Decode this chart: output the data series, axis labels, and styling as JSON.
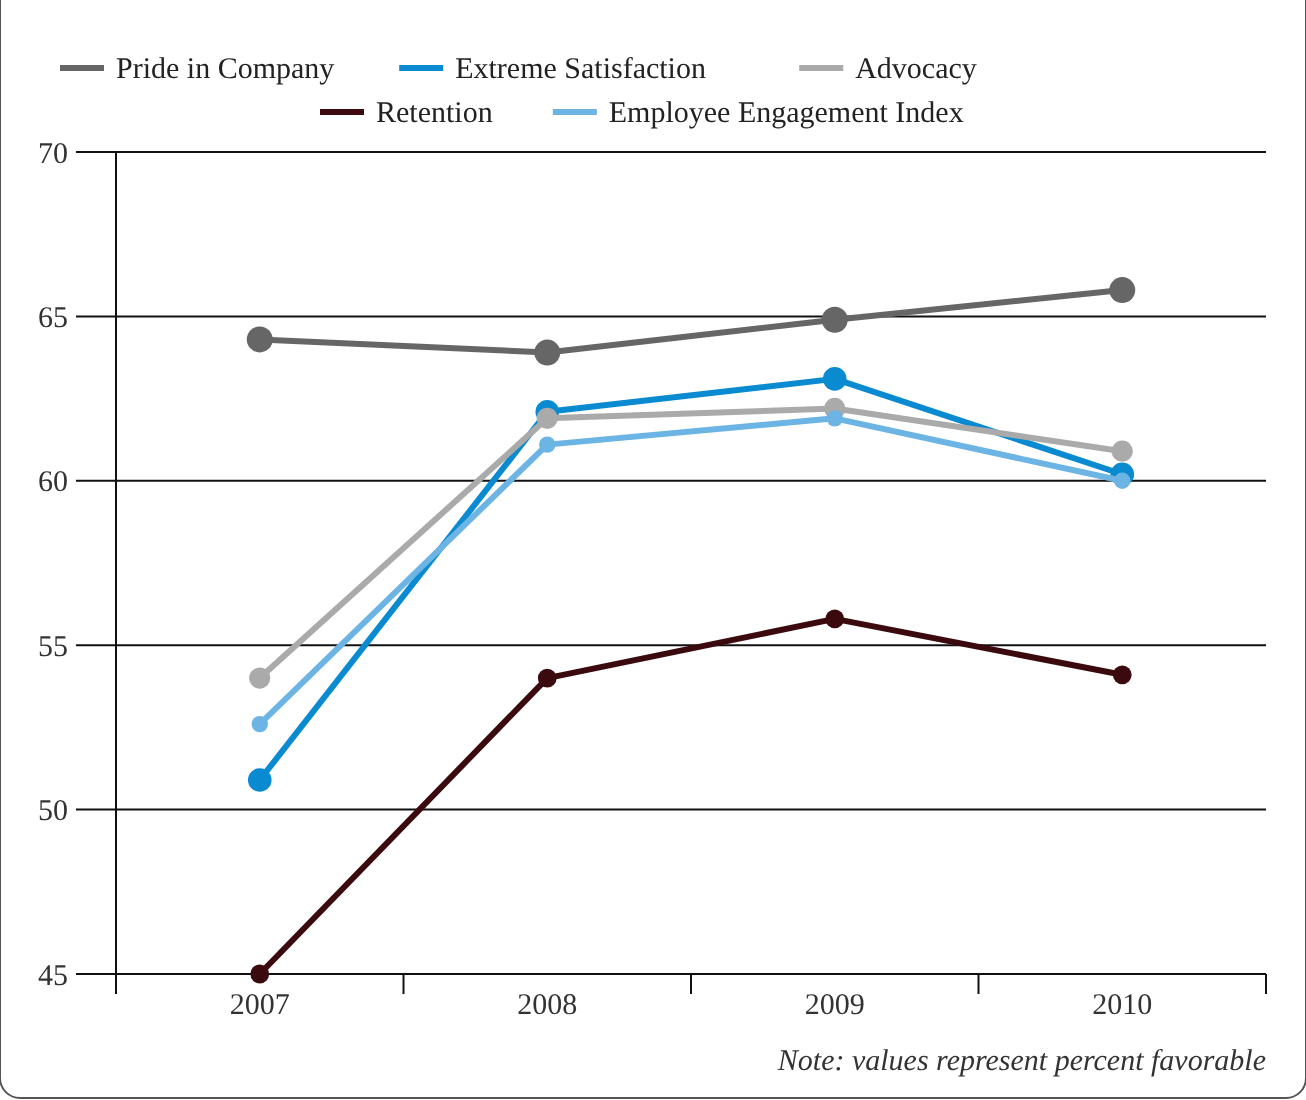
{
  "chart_data": {
    "type": "line",
    "categories": [
      "2007",
      "2008",
      "2009",
      "2010"
    ],
    "series": [
      {
        "name": "Pride in Company",
        "color": "#666666",
        "values": [
          64.3,
          63.9,
          64.9,
          65.8
        ]
      },
      {
        "name": "Extreme Satisfaction",
        "color": "#0a8ad0",
        "values": [
          50.9,
          62.1,
          63.1,
          60.2
        ]
      },
      {
        "name": "Advocacy",
        "color": "#aaaaaa",
        "values": [
          54.0,
          61.9,
          62.2,
          60.9
        ]
      },
      {
        "name": "Retention",
        "color": "#3b0a0f",
        "values": [
          45.0,
          54.0,
          55.8,
          54.1
        ]
      },
      {
        "name": "Employee Engagement Index",
        "color": "#6cb4e4",
        "values": [
          52.6,
          61.1,
          61.9,
          60.0
        ]
      }
    ],
    "ylim": [
      45,
      70
    ],
    "yticks": [
      45,
      50,
      55,
      60,
      65,
      70
    ],
    "grid": "y",
    "legend": "top",
    "marker": "circle",
    "line_style": "solid",
    "annotations": [
      "Note: values represent percent favorable"
    ]
  }
}
